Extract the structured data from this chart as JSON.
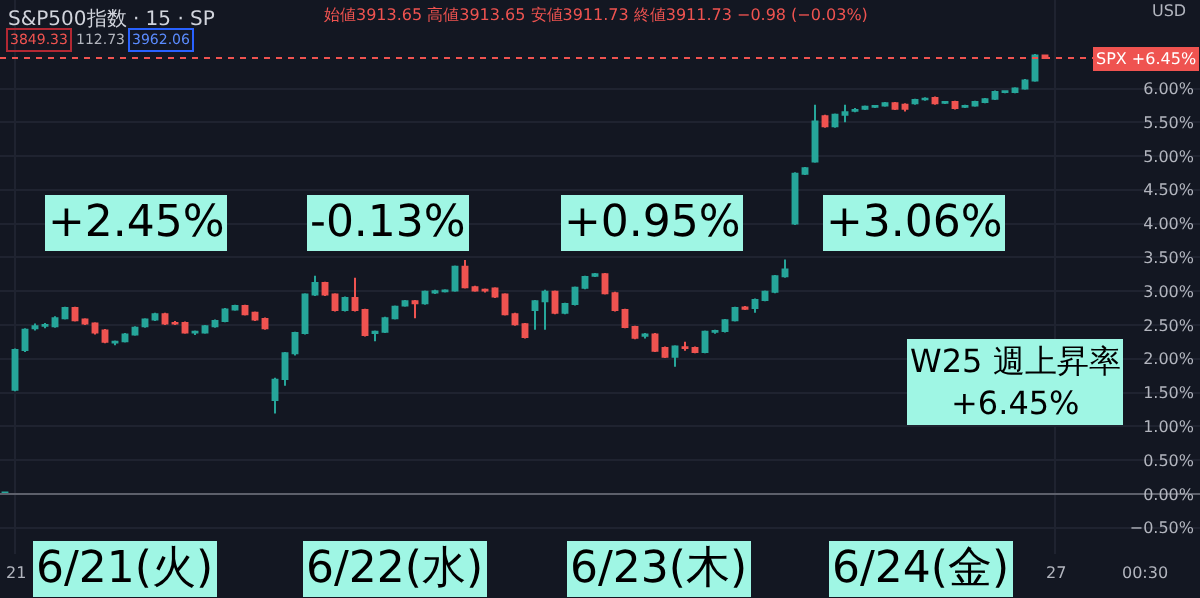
{
  "chart_data": {
    "type": "candlestick",
    "title": "S&P500指数 · 15 · SP",
    "subtitle": "始値3913.65 高値3913.65 安値3911.73 終値3911.73 −0.98 (−0.03%)",
    "categories": [
      null,
      "21",
      null,
      null,
      null,
      null,
      null,
      null,
      null,
      null,
      null,
      null,
      null,
      null,
      null,
      null,
      null,
      null,
      null,
      null,
      null,
      null,
      null,
      null,
      null,
      null,
      null,
      null,
      null,
      null,
      null,
      null,
      null,
      null,
      null,
      null,
      null,
      null,
      null,
      null,
      null,
      null,
      null,
      null,
      null,
      null,
      null,
      null,
      null,
      null,
      null,
      null,
      null,
      null,
      null,
      null,
      null,
      null,
      null,
      null,
      null,
      null,
      null,
      null,
      null,
      null,
      null,
      null,
      null,
      null,
      null,
      null,
      null,
      null,
      null,
      null,
      null,
      null,
      null,
      null,
      null,
      null,
      null,
      null,
      null,
      null,
      null,
      null,
      null,
      null,
      null,
      null,
      null,
      null,
      null,
      null,
      null,
      null,
      null,
      null,
      null,
      null,
      null,
      null,
      null,
      "27",
      null,
      null,
      null,
      null,
      null,
      null,
      null,
      null,
      "00:30",
      null,
      null,
      null,
      null,
      null
    ],
    "ohlc": [
      [
        0,
        0.03,
        0,
        0.02
      ],
      [
        1.54,
        2.15,
        1.52,
        2.13
      ],
      [
        2.13,
        2.45,
        2.1,
        2.43
      ],
      [
        2.45,
        2.52,
        2.42,
        2.48
      ],
      [
        2.49,
        2.53,
        2.45,
        2.5
      ],
      [
        2.48,
        2.63,
        2.46,
        2.6
      ],
      [
        2.6,
        2.77,
        2.58,
        2.75
      ],
      [
        2.75,
        2.77,
        2.55,
        2.57
      ],
      [
        2.58,
        2.6,
        2.5,
        2.52
      ],
      [
        2.52,
        2.54,
        2.36,
        2.39
      ],
      [
        2.42,
        2.44,
        2.23,
        2.25
      ],
      [
        2.24,
        2.27,
        2.2,
        2.25
      ],
      [
        2.26,
        2.38,
        2.24,
        2.36
      ],
      [
        2.36,
        2.48,
        2.34,
        2.46
      ],
      [
        2.48,
        2.6,
        2.46,
        2.58
      ],
      [
        2.58,
        2.68,
        2.56,
        2.66
      ],
      [
        2.66,
        2.68,
        2.5,
        2.52
      ],
      [
        2.53,
        2.56,
        2.5,
        2.52
      ],
      [
        2.53,
        2.55,
        2.37,
        2.39
      ],
      [
        2.39,
        2.42,
        2.35,
        2.4
      ],
      [
        2.39,
        2.5,
        2.37,
        2.48
      ],
      [
        2.48,
        2.58,
        2.46,
        2.56
      ],
      [
        2.56,
        2.75,
        2.54,
        2.73
      ],
      [
        2.73,
        2.8,
        2.71,
        2.78
      ],
      [
        2.78,
        2.8,
        2.64,
        2.66
      ],
      [
        2.68,
        2.7,
        2.56,
        2.58
      ],
      [
        2.59,
        2.61,
        2.43,
        2.45
      ],
      [
        1.39,
        1.72,
        1.19,
        1.69
      ],
      [
        1.7,
        2.1,
        1.6,
        2.08
      ],
      [
        2.08,
        2.4,
        2.05,
        2.38
      ],
      [
        2.38,
        2.97,
        2.36,
        2.95
      ],
      [
        2.95,
        3.23,
        2.93,
        3.12
      ],
      [
        3.12,
        3.14,
        2.93,
        2.95
      ],
      [
        2.95,
        2.97,
        2.7,
        2.72
      ],
      [
        2.72,
        2.92,
        2.7,
        2.9
      ],
      [
        2.9,
        3.2,
        2.7,
        2.72
      ],
      [
        2.72,
        2.74,
        2.33,
        2.35
      ],
      [
        2.38,
        2.42,
        2.26,
        2.4
      ],
      [
        2.4,
        2.62,
        2.38,
        2.6
      ],
      [
        2.6,
        2.79,
        2.58,
        2.77
      ],
      [
        2.79,
        2.87,
        2.77,
        2.85
      ],
      [
        2.85,
        2.87,
        2.6,
        2.82
      ],
      [
        2.82,
        3.01,
        2.8,
        2.99
      ],
      [
        2.98,
        3.02,
        2.96,
        3.0
      ],
      [
        3.0,
        3.03,
        2.98,
        3.01
      ],
      [
        3.01,
        3.38,
        2.99,
        3.36
      ],
      [
        3.36,
        3.46,
        3.04,
        3.06
      ],
      [
        3.06,
        3.08,
        2.99,
        3.01
      ],
      [
        3.02,
        3.04,
        2.98,
        3.01
      ],
      [
        3.04,
        3.06,
        2.9,
        2.92
      ],
      [
        2.95,
        2.97,
        2.64,
        2.66
      ],
      [
        2.66,
        2.68,
        2.49,
        2.51
      ],
      [
        2.51,
        2.53,
        2.3,
        2.32
      ],
      [
        2.72,
        2.87,
        2.43,
        2.85
      ],
      [
        2.85,
        3.02,
        2.43,
        2.99
      ],
      [
        2.99,
        3.01,
        2.66,
        2.68
      ],
      [
        2.68,
        2.83,
        2.66,
        2.81
      ],
      [
        2.81,
        3.07,
        2.79,
        3.05
      ],
      [
        3.05,
        3.23,
        3.03,
        3.21
      ],
      [
        3.23,
        3.27,
        3.21,
        3.25
      ],
      [
        3.25,
        3.27,
        2.95,
        2.97
      ],
      [
        2.97,
        2.99,
        2.7,
        2.72
      ],
      [
        2.72,
        2.74,
        2.45,
        2.47
      ],
      [
        2.47,
        2.49,
        2.29,
        2.31
      ],
      [
        2.34,
        2.38,
        2.3,
        2.36
      ],
      [
        2.36,
        2.38,
        2.1,
        2.12
      ],
      [
        2.16,
        2.18,
        2.01,
        2.03
      ],
      [
        2.03,
        2.2,
        1.88,
        2.18
      ],
      [
        2.17,
        2.25,
        2.12,
        2.16
      ],
      [
        2.16,
        2.18,
        2.08,
        2.1
      ],
      [
        2.1,
        2.42,
        2.08,
        2.4
      ],
      [
        2.4,
        2.43,
        2.37,
        2.41
      ],
      [
        2.41,
        2.59,
        2.39,
        2.57
      ],
      [
        2.57,
        2.77,
        2.55,
        2.75
      ],
      [
        2.76,
        2.78,
        2.72,
        2.74
      ],
      [
        2.75,
        2.89,
        2.68,
        2.87
      ],
      [
        2.87,
        3.01,
        2.85,
        2.99
      ],
      [
        2.99,
        3.24,
        2.97,
        3.22
      ],
      [
        3.22,
        3.47,
        3.2,
        3.32
      ],
      [
        4.0,
        4.76,
        3.98,
        4.74
      ],
      [
        4.74,
        4.84,
        4.72,
        4.82
      ],
      [
        4.92,
        5.76,
        4.9,
        5.51
      ],
      [
        5.59,
        5.61,
        5.42,
        5.44
      ],
      [
        5.44,
        5.63,
        5.42,
        5.61
      ],
      [
        5.61,
        5.76,
        5.5,
        5.65
      ],
      [
        5.67,
        5.71,
        5.65,
        5.68
      ],
      [
        5.7,
        5.75,
        5.68,
        5.73
      ],
      [
        5.73,
        5.75,
        5.71,
        5.74
      ],
      [
        5.75,
        5.8,
        5.73,
        5.78
      ],
      [
        5.78,
        5.8,
        5.68,
        5.7
      ],
      [
        5.76,
        5.78,
        5.66,
        5.7
      ],
      [
        5.78,
        5.85,
        5.76,
        5.83
      ],
      [
        5.84,
        5.87,
        5.82,
        5.85
      ],
      [
        5.86,
        5.88,
        5.76,
        5.78
      ],
      [
        5.79,
        5.81,
        5.77,
        5.8
      ],
      [
        5.8,
        5.82,
        5.69,
        5.71
      ],
      [
        5.73,
        5.76,
        5.71,
        5.74
      ],
      [
        5.75,
        5.82,
        5.73,
        5.8
      ],
      [
        5.8,
        5.86,
        5.78,
        5.84
      ],
      [
        5.85,
        5.97,
        5.83,
        5.95
      ],
      [
        5.95,
        5.97,
        5.93,
        5.96
      ],
      [
        5.95,
        6.02,
        5.93,
        6.0
      ],
      [
        6.0,
        6.14,
        5.98,
        6.12
      ],
      [
        6.12,
        6.51,
        6.1,
        6.49
      ],
      [
        6.49,
        6.5,
        6.44,
        6.45
      ],
      null,
      null,
      null,
      null,
      null,
      null,
      null,
      null,
      null,
      null,
      null,
      null,
      null,
      null,
      null
    ],
    "colors": [
      "#26a69a",
      "#26a69a",
      "#26a69a",
      "#26a69a",
      "#26a69a",
      "#26a69a",
      "#26a69a",
      "#ef5350",
      "#ef5350",
      "#ef5350",
      "#ef5350",
      "#26a69a",
      "#26a69a",
      "#26a69a",
      "#26a69a",
      "#26a69a",
      "#ef5350",
      "#ef5350",
      "#ef5350",
      "#26a69a",
      "#26a69a",
      "#26a69a",
      "#26a69a",
      "#26a69a",
      "#ef5350",
      "#ef5350",
      "#ef5350",
      "#26a69a",
      "#26a69a",
      "#26a69a",
      "#26a69a",
      "#26a69a",
      "#ef5350",
      "#ef5350",
      "#26a69a",
      "#ef5350",
      "#ef5350",
      "#26a69a",
      "#26a69a",
      "#26a69a",
      "#26a69a",
      "#ef5350",
      "#26a69a",
      "#26a69a",
      "#26a69a",
      "#26a69a",
      "#ef5350",
      "#ef5350",
      "#ef5350",
      "#ef5350",
      "#ef5350",
      "#ef5350",
      "#ef5350",
      "#26a69a",
      "#26a69a",
      "#ef5350",
      "#26a69a",
      "#26a69a",
      "#26a69a",
      "#26a69a",
      "#ef5350",
      "#ef5350",
      "#ef5350",
      "#ef5350",
      "#26a69a",
      "#ef5350",
      "#ef5350",
      "#26a69a",
      "#ef5350",
      "#ef5350",
      "#26a69a",
      "#26a69a",
      "#26a69a",
      "#26a69a",
      "#ef5350",
      "#26a69a",
      "#26a69a",
      "#26a69a",
      "#26a69a",
      "#26a69a",
      "#26a69a",
      "#26a69a",
      "#ef5350",
      "#26a69a",
      "#26a69a",
      "#26a69a",
      "#26a69a",
      "#26a69a",
      "#26a69a",
      "#ef5350",
      "#ef5350",
      "#26a69a",
      "#26a69a",
      "#ef5350",
      "#26a69a",
      "#ef5350",
      "#26a69a",
      "#26a69a",
      "#26a69a",
      "#26a69a",
      "#26a69a",
      "#26a69a",
      "#26a69a",
      "#26a69a",
      "#ef5350",
      null,
      null,
      null,
      null,
      null,
      null,
      null,
      null,
      null,
      null,
      null,
      null,
      null,
      null,
      null
    ],
    "ylim": [
      -0.89,
      7.31
    ],
    "yticks": [
      {
        "value": -0.5,
        "label": "−0.50%"
      },
      {
        "value": 0,
        "label": "0.00%"
      },
      {
        "value": 0.5,
        "label": "0.50%"
      },
      {
        "value": 1,
        "label": "1.00%"
      },
      {
        "value": 1.5,
        "label": "1.50%"
      },
      {
        "value": 2,
        "label": "2.00%"
      },
      {
        "value": 2.5,
        "label": "2.50%"
      },
      {
        "value": 3,
        "label": "3.00%"
      },
      {
        "value": 3.5,
        "label": "3.50%"
      },
      {
        "value": 4,
        "label": "4.00%"
      },
      {
        "value": 4.5,
        "label": "4.50%"
      },
      {
        "value": 5,
        "label": "5.00%"
      },
      {
        "value": 5.5,
        "label": "5.50%"
      },
      {
        "value": 6,
        "label": "6.00%"
      }
    ],
    "grid": true,
    "ref_lines": [
      {
        "axis": "y",
        "value": 0,
        "color": "#5d606b",
        "line_style": "solid"
      },
      {
        "axis": "y",
        "value": 6.45,
        "label": "SPX +6.45%",
        "color": "#ef5350",
        "line_style": "dotted"
      }
    ],
    "annotations": [
      "+2.45%",
      "-0.13%",
      "+0.95%",
      "+3.06%",
      "W25 週上昇率\n+6.45%",
      "6/21(火)",
      "6/22(水)",
      "6/23(木)",
      "6/24(金)",
      "3849.33",
      "112.73",
      "3962.06",
      "USD"
    ]
  }
}
